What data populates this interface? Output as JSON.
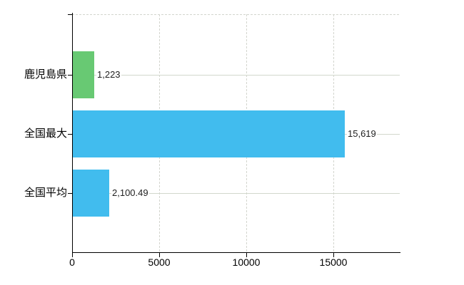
{
  "chart_data": {
    "type": "bar",
    "orientation": "horizontal",
    "title": "",
    "xlabel": "",
    "ylabel": "",
    "categories": [
      "鹿児島県",
      "全国最大",
      "全国平均"
    ],
    "values": [
      1223,
      15619,
      2100.49
    ],
    "value_labels": [
      "1,223",
      "15,619",
      "2,100.49"
    ],
    "bar_colors": [
      "#68c973",
      "#41bcee",
      "#41bcee"
    ],
    "x_ticks": [
      0,
      5000,
      10000,
      15000
    ],
    "x_tick_labels": [
      "0",
      "5000",
      "10000",
      "15000"
    ],
    "xlim": [
      0,
      18800
    ],
    "grid": true,
    "legend": null,
    "colors": {
      "background": "#ffffff",
      "axis": "#000000",
      "gridline": "#d3d5ce",
      "category_text": "#000000",
      "value_text": "#1f1f1f"
    }
  }
}
